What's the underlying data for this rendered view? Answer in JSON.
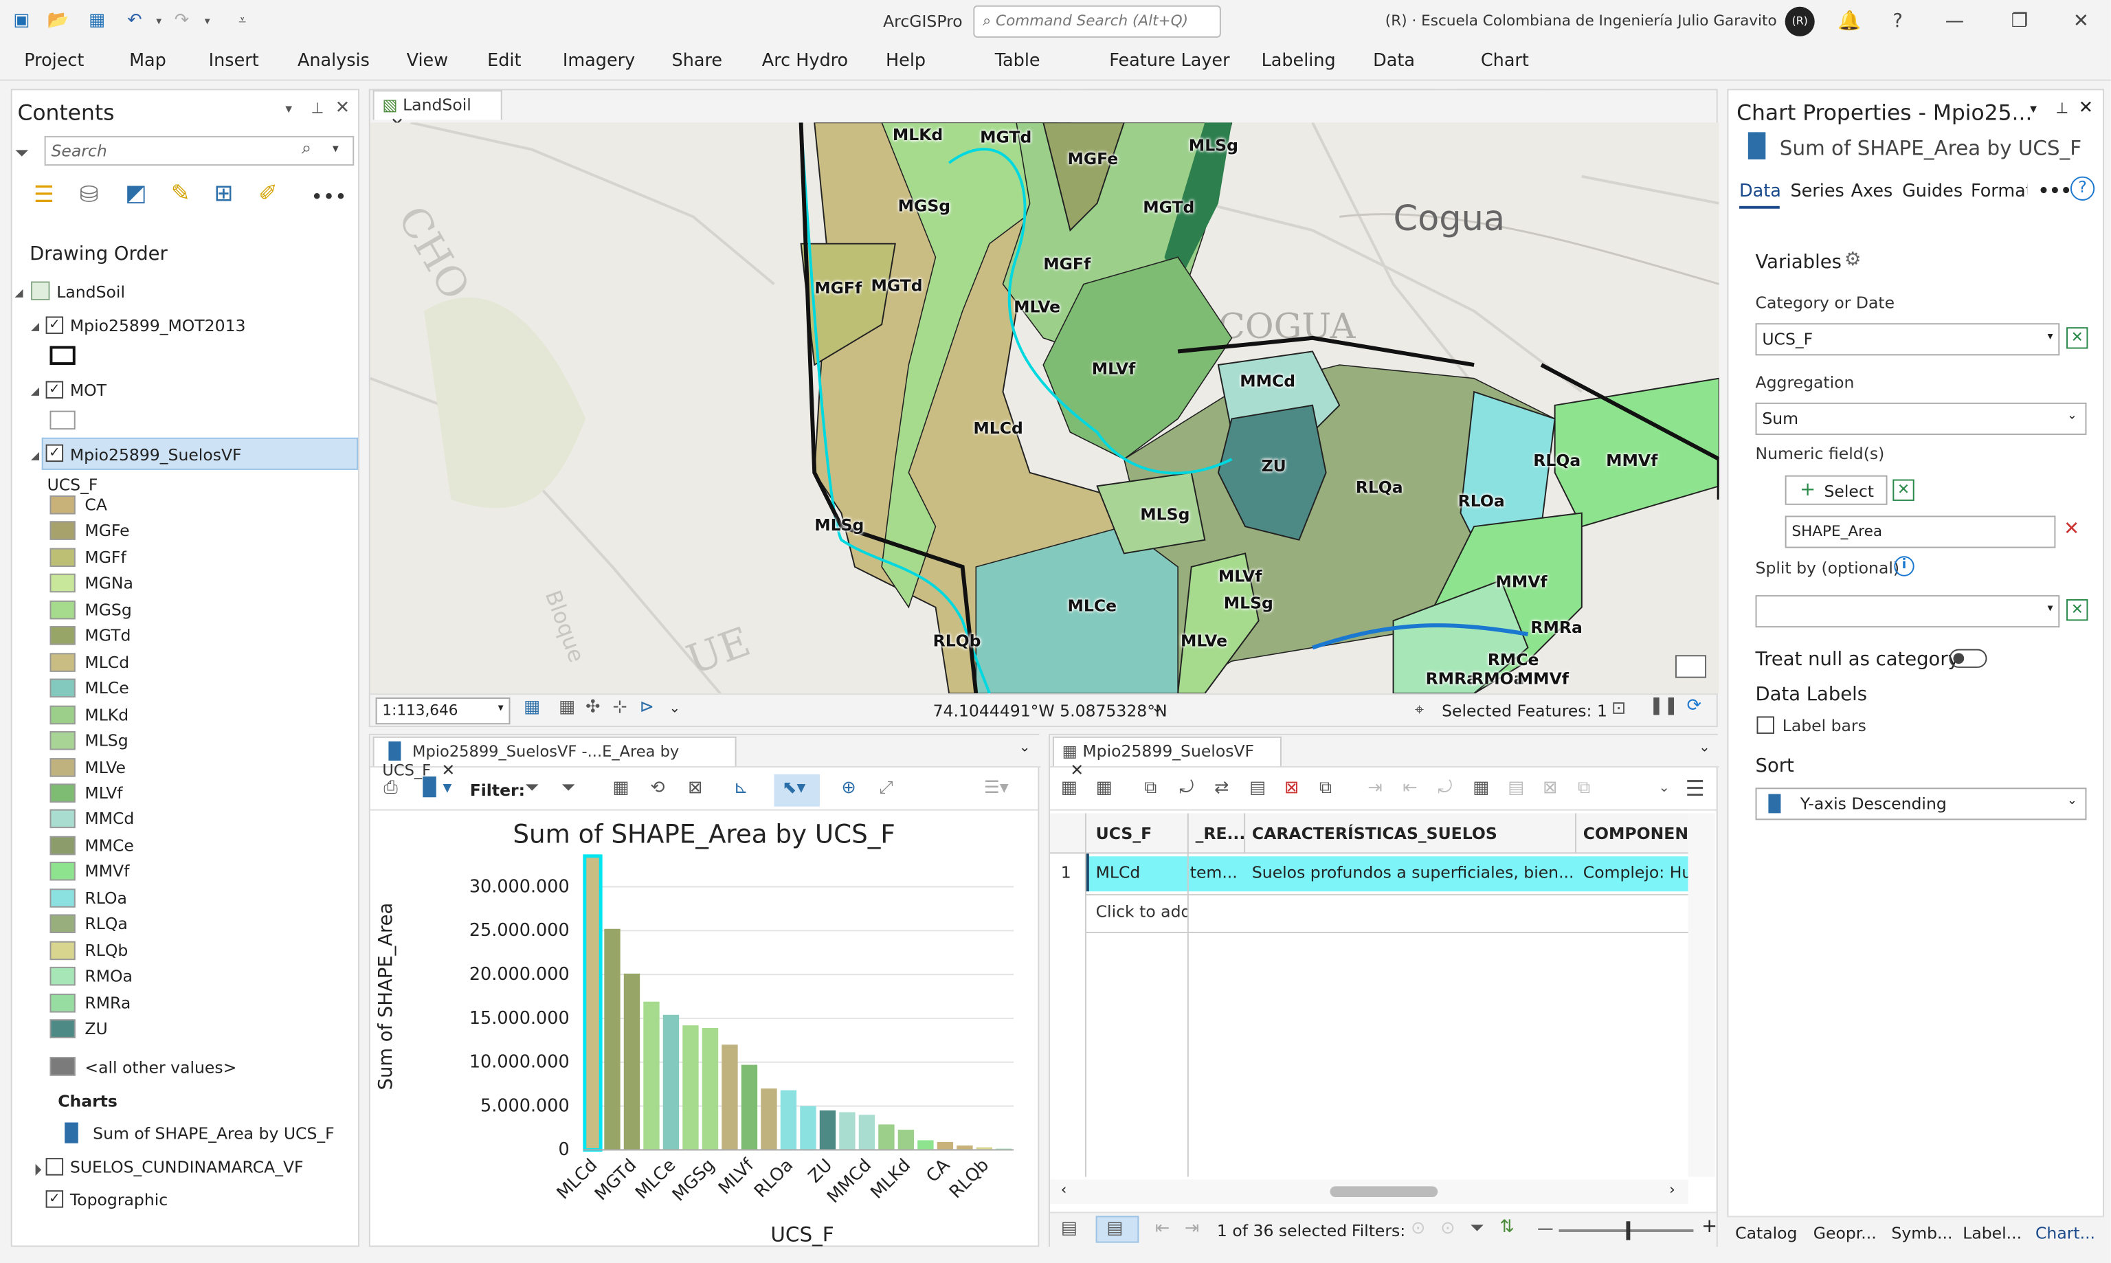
{
  "app": {
    "name": "ArcGISPro",
    "search_placeholder": "Command Search (Alt+Q)",
    "org": "(R) · Escuela Colombiana de Ingeniería Julio Garavito",
    "avatar": "(R)"
  },
  "menu": {
    "items": [
      "Project",
      "Map",
      "Insert",
      "Analysis",
      "View",
      "Edit",
      "Imagery",
      "Share",
      "Arc Hydro",
      "Help"
    ],
    "ctx": [
      "Table",
      "Feature Layer",
      "Labeling",
      "Data",
      "Chart"
    ]
  },
  "contents": {
    "title": "Contents",
    "search_placeholder": "Search",
    "drawing_order": "Drawing Order",
    "map": "LandSoil",
    "layer1": "Mpio25899_MOT2013",
    "layer2": "MOT",
    "layer3": "Mpio25899_SuelosVF",
    "field": "UCS_F",
    "classes": [
      {
        "n": "CA",
        "c": "#c9b27a"
      },
      {
        "n": "MGFe",
        "c": "#a7a16c"
      },
      {
        "n": "MGFf",
        "c": "#bdbf74"
      },
      {
        "n": "MGNa",
        "c": "#c9e79a"
      },
      {
        "n": "MGSg",
        "c": "#a6db8e"
      },
      {
        "n": "MGTd",
        "c": "#97a667"
      },
      {
        "n": "MLCd",
        "c": "#cabd83"
      },
      {
        "n": "MLCe",
        "c": "#83c9bd"
      },
      {
        "n": "MLKd",
        "c": "#9bcf8a"
      },
      {
        "n": "MLSg",
        "c": "#a8d596"
      },
      {
        "n": "MLVe",
        "c": "#bfb27f"
      },
      {
        "n": "MLVf",
        "c": "#7fbc73"
      },
      {
        "n": "MMCd",
        "c": "#a8ddd0"
      },
      {
        "n": "MMCe",
        "c": "#8c9c6a"
      },
      {
        "n": "MMVf",
        "c": "#8ee38e"
      },
      {
        "n": "RLOa",
        "c": "#8be0e0"
      },
      {
        "n": "RLQa",
        "c": "#98ae7c"
      },
      {
        "n": "RLQb",
        "c": "#d8d58f"
      },
      {
        "n": "RMOa",
        "c": "#a6e6b7"
      },
      {
        "n": "RMRa",
        "c": "#97dca0"
      },
      {
        "n": "ZU",
        "c": "#4d8a85"
      }
    ],
    "other": "<all other values>",
    "charts": "Charts",
    "chart_item": "Sum of SHAPE_Area by UCS_F",
    "layer4": "SUELOS_CUNDINAMARCA_VF",
    "layer5": "Topographic"
  },
  "map": {
    "tab": "LandSoil",
    "scale": "1:113,646",
    "coords": "74.1044491°W 5.0875328°N",
    "selected": "Selected Features: 1",
    "places": [
      "Cogua",
      "COGUA",
      "CHO",
      "Bloque",
      "UE"
    ],
    "labels": [
      "MLKd",
      "MGTd",
      "MGFe",
      "MLSg",
      "MGSg",
      "MGTd",
      "MGFf",
      "MGFf",
      "MGTd",
      "MLVe",
      "MLVf",
      "MMCd",
      "MLCd",
      "ZU",
      "RLQa",
      "RLQa",
      "MMVf",
      "MLSg",
      "MLSg",
      "RLOa",
      "MLVf",
      "MMVf",
      "MLCe",
      "MLSg",
      "RMRa",
      "RLQb",
      "MLVe",
      "RMCe",
      "RMRa",
      "RMOa",
      "MMVf"
    ]
  },
  "chartview": {
    "tab": "Mpio25899_SuelosVF -...E_Area by UCS_F",
    "filter": "Filter:"
  },
  "chart_data": {
    "type": "bar",
    "title": "Sum of SHAPE_Area by UCS_F",
    "xlabel": "UCS_F",
    "ylabel": "Sum of SHAPE_Area",
    "ylim": [
      0,
      35000000
    ],
    "ticks": [
      "0",
      "5.000.000",
      "10.000.000",
      "15.000.000",
      "20.000.000",
      "25.000.000",
      "30.000.000"
    ],
    "categories": [
      "MLCd",
      "MGTd",
      "MLCe",
      "MGSg",
      "MLVf",
      "RLOa",
      "ZU",
      "MMCd",
      "MLKd",
      "CA",
      "RLQb"
    ],
    "bars": [
      {
        "c": "MLCd",
        "v": 33500000,
        "col": "#cabd83",
        "sel": true
      },
      {
        "v": 25200000,
        "col": "#97a667"
      },
      {
        "c": "MGTd",
        "v": 20100000,
        "col": "#97a667"
      },
      {
        "v": 16900000,
        "col": "#a6db8e"
      },
      {
        "c": "MLCe",
        "v": 15400000,
        "col": "#83c9bd"
      },
      {
        "v": 14200000,
        "col": "#a6db8e"
      },
      {
        "c": "MGSg",
        "v": 13900000,
        "col": "#a6db8e"
      },
      {
        "v": 12000000,
        "col": "#bfb27f"
      },
      {
        "c": "MLVf",
        "v": 9700000,
        "col": "#7fbc73"
      },
      {
        "v": 7000000,
        "col": "#bfb27f"
      },
      {
        "c": "RLOa",
        "v": 6800000,
        "col": "#8be0e0"
      },
      {
        "v": 5000000,
        "col": "#8be0e0"
      },
      {
        "c": "ZU",
        "v": 4500000,
        "col": "#4d8a85"
      },
      {
        "v": 4300000,
        "col": "#a8ddd0"
      },
      {
        "c": "MMCd",
        "v": 4000000,
        "col": "#a8ddd0"
      },
      {
        "v": 2900000,
        "col": "#9bcf8a"
      },
      {
        "c": "MLKd",
        "v": 2300000,
        "col": "#9bcf8a"
      },
      {
        "v": 1100000,
        "col": "#8ee38e"
      },
      {
        "c": "CA",
        "v": 900000,
        "col": "#c9b27a"
      },
      {
        "v": 500000,
        "col": "#c9b27a"
      },
      {
        "c": "RLQb",
        "v": 300000,
        "col": "#d8d58f"
      },
      {
        "v": 150000,
        "col": "#a6e6b7"
      }
    ]
  },
  "table": {
    "tab": "Mpio25899_SuelosVF",
    "cols": [
      "UCS_F",
      "_RE...",
      "CARACTERÍSTICAS_SUELOS",
      "COMPONEN"
    ],
    "row_num": "1",
    "row": [
      "MLCd",
      "tem...",
      "Suelos profundos a superficiales, bien...",
      "Complejo: Hu"
    ],
    "add": "Click to add",
    "status": "1 of 36 selected",
    "filters": "Filters:"
  },
  "props": {
    "title": "Chart Properties - Mpio25...",
    "subtitle": "Sum of SHAPE_Area by UCS_F",
    "tabs": [
      "Data",
      "Series",
      "Axes",
      "Guides",
      "Format"
    ],
    "variables": "Variables",
    "cat_label": "Category or Date",
    "cat_val": "UCS_F",
    "agg_label": "Aggregation",
    "agg_val": "Sum",
    "num_label": "Numeric field(s)",
    "select": "Select",
    "num_val": "SHAPE_Area",
    "split_label": "Split by (optional)",
    "treatnull": "Treat null as category",
    "datalabels": "Data Labels",
    "labelbars": "Label bars",
    "sort": "Sort",
    "sort_val": "Y-axis Descending"
  },
  "bottomtabs": [
    "Catalog",
    "Geopr...",
    "Symb...",
    "Label...",
    "Chart..."
  ]
}
